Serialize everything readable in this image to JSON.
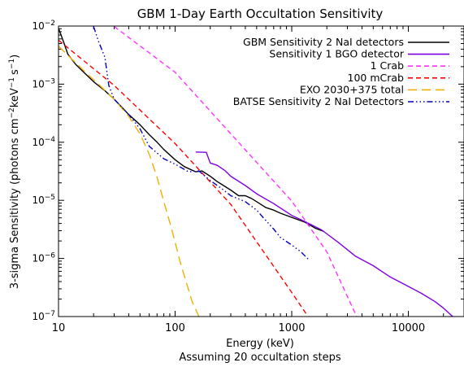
{
  "chart_data": {
    "type": "line",
    "title": "GBM 1-Day Earth Occultation Sensitivity",
    "xlabel": "Energy (keV)",
    "xlabel_note": "Assuming 20 occultation steps",
    "ylabel_parts": {
      "main": "3-sigma Sensitivity (photons cm",
      "exp1": "−2",
      "mid": "keV",
      "exp2": "−1",
      "s": "s",
      "exp3": "−1",
      "close": ")"
    },
    "x_scale": "log",
    "y_scale": "log",
    "xlim": [
      10,
      30000
    ],
    "ylim": [
      1e-07,
      0.01
    ],
    "x_ticks": [
      {
        "value": 10,
        "label": "10"
      },
      {
        "value": 100,
        "label": "100"
      },
      {
        "value": 1000,
        "label": "1000"
      },
      {
        "value": 10000,
        "label": "10000"
      }
    ],
    "y_ticks": [
      {
        "value": 0.01,
        "base": "10",
        "exp": "−2"
      },
      {
        "value": 0.001,
        "base": "10",
        "exp": "−3"
      },
      {
        "value": 0.0001,
        "base": "10",
        "exp": "−4"
      },
      {
        "value": 1e-05,
        "base": "10",
        "exp": "−5"
      },
      {
        "value": 1e-06,
        "base": "10",
        "exp": "−6"
      },
      {
        "value": 1e-07,
        "base": "10",
        "exp": "−7"
      }
    ],
    "legend_position": "top-right",
    "series": [
      {
        "name": "GBM Sensitivity 2 NaI detectors",
        "color": "#000000",
        "dash": "",
        "x": [
          10,
          11,
          12,
          14,
          17,
          20,
          25,
          30,
          40,
          50,
          60,
          70,
          80,
          100,
          120,
          150,
          170,
          200,
          230,
          260,
          300,
          350,
          400,
          450,
          500,
          600,
          700,
          800,
          1000,
          1300,
          1600,
          1900
        ],
        "y": [
          0.0092,
          0.0055,
          0.0033,
          0.0022,
          0.0015,
          0.0011,
          0.00077,
          0.00055,
          0.0003,
          0.0002,
          0.000135,
          0.0001,
          7.5e-05,
          5e-05,
          3.8e-05,
          3.1e-05,
          3.2e-05,
          2.6e-05,
          2.1e-05,
          1.8e-05,
          1.5e-05,
          1.2e-05,
          1.2e-05,
          1.08e-05,
          9.5e-06,
          7.5e-06,
          6.8e-06,
          6e-06,
          5.1e-06,
          4.2e-06,
          3.3e-06,
          2.9e-06
        ]
      },
      {
        "name": "Sensitivity 1 BGO detector",
        "color": "#8000e0",
        "dash": "",
        "x": [
          150,
          185,
          200,
          230,
          270,
          300,
          400,
          500,
          700,
          1000,
          1300,
          1800,
          2500,
          3500,
          5000,
          7000,
          10000,
          13000,
          17000,
          20000,
          24000
        ],
        "y": [
          6.8e-05,
          6.7e-05,
          4.4e-05,
          4e-05,
          3.2e-05,
          2.6e-05,
          1.8e-05,
          1.3e-05,
          8.8e-06,
          5.5e-06,
          4.3e-06,
          3.1e-06,
          1.9e-06,
          1.1e-06,
          7.5e-07,
          4.8e-07,
          3.3e-07,
          2.5e-07,
          1.8e-07,
          1.4e-07,
          1e-07
        ]
      },
      {
        "name": "1 Crab",
        "color": "#ff33ff",
        "dash": "6 4",
        "x": [
          30,
          100,
          300,
          1000,
          2000,
          3600
        ],
        "y": [
          0.0098,
          0.0016,
          0.00014,
          9.7e-06,
          1.3e-06,
          1e-07
        ]
      },
      {
        "name": "100 mCrab",
        "color": "#ff0000",
        "dash": "6 4",
        "x": [
          10,
          30,
          100,
          300,
          1000,
          1380
        ],
        "y": [
          0.0057,
          0.00095,
          9.5e-05,
          8.5e-06,
          2.6e-07,
          1e-07
        ]
      },
      {
        "name": "EXO 2030+375 total",
        "color": "#f0b000",
        "dash": "11 6",
        "x": [
          10,
          13,
          17,
          22,
          30,
          40,
          50,
          60,
          70,
          80,
          90,
          100,
          110,
          125,
          140,
          160
        ],
        "y": [
          0.0045,
          0.0027,
          0.0016,
          0.001,
          0.00055,
          0.00028,
          0.00014,
          6.2e-05,
          2.5e-05,
          9.5e-06,
          4.2e-06,
          1.9e-06,
          9e-07,
          3.8e-07,
          1.8e-07,
          1e-07
        ]
      },
      {
        "name": "BATSE Sensitivity 2 NaI Detectors",
        "color": "#0000c0",
        "dash": "7 3 1.5 3 1.5 3 1.5 3",
        "x": [
          20,
          22,
          25,
          27,
          30,
          40,
          50,
          60,
          80,
          100,
          130,
          160,
          200,
          250,
          300,
          400,
          500,
          600,
          700,
          800,
          1000,
          1200,
          1400
        ],
        "y": [
          0.0098,
          0.0055,
          0.0029,
          0.00095,
          0.00055,
          0.0003,
          0.00017,
          8.5e-05,
          5.2e-05,
          4.2e-05,
          3.1e-05,
          3.2e-05,
          2.2e-05,
          1.6e-05,
          1.2e-05,
          9.5e-06,
          6.8e-06,
          4.5e-06,
          3.2e-06,
          2.3e-06,
          1.7e-06,
          1.3e-06,
          9.5e-07
        ]
      }
    ]
  }
}
